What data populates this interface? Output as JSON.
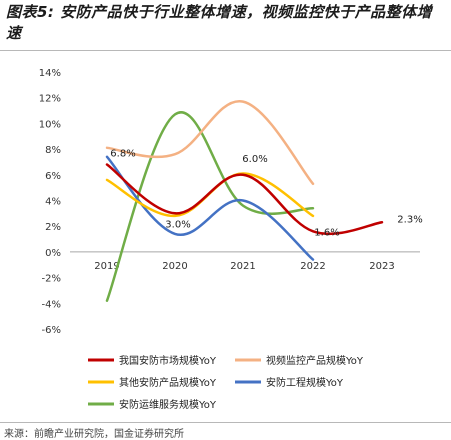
{
  "figure": {
    "title": "图表5:  安防产品快于行业整体增速，视频监控快于产品整体增速",
    "source": "来源：前瞻产业研究院，国金证券研究所"
  },
  "chart_data": {
    "type": "line",
    "title": "",
    "xlabel": "",
    "ylabel": "",
    "categories": [
      "2019",
      "2020",
      "2021",
      "2022",
      "2023"
    ],
    "ylim": [
      -6,
      14
    ],
    "yticks": [
      -6,
      -4,
      -2,
      0,
      2,
      4,
      6,
      8,
      10,
      12,
      14
    ],
    "y_unit": "%",
    "grid": false,
    "legend_position": "bottom",
    "smooth": true,
    "series": [
      {
        "name": "我国安防市场规模YoY",
        "color": "#c00000",
        "values": [
          6.8,
          3.0,
          6.0,
          1.6,
          2.3
        ]
      },
      {
        "name": "视频监控产品规模YoY",
        "color": "#f4b183",
        "values": [
          8.1,
          7.6,
          11.7,
          5.3,
          null
        ]
      },
      {
        "name": "其他安防产品规模YoY",
        "color": "#ffc000",
        "values": [
          5.6,
          2.8,
          6.1,
          2.8,
          null
        ]
      },
      {
        "name": "安防工程规模YoY",
        "color": "#4472c4",
        "values": [
          7.4,
          1.4,
          4.0,
          -0.6,
          null
        ]
      },
      {
        "name": "安防运维服务规模YoY",
        "color": "#70ad47",
        "values": [
          -3.8,
          10.7,
          3.6,
          3.4,
          null
        ]
      }
    ],
    "data_labels": [
      {
        "series": 0,
        "index": 0,
        "text": "6.8%"
      },
      {
        "series": 0,
        "index": 1,
        "text": "3.0%"
      },
      {
        "series": 0,
        "index": 2,
        "text": "6.0%"
      },
      {
        "series": 0,
        "index": 3,
        "text": "1.6%"
      },
      {
        "series": 0,
        "index": 4,
        "text": "2.3%"
      }
    ]
  }
}
